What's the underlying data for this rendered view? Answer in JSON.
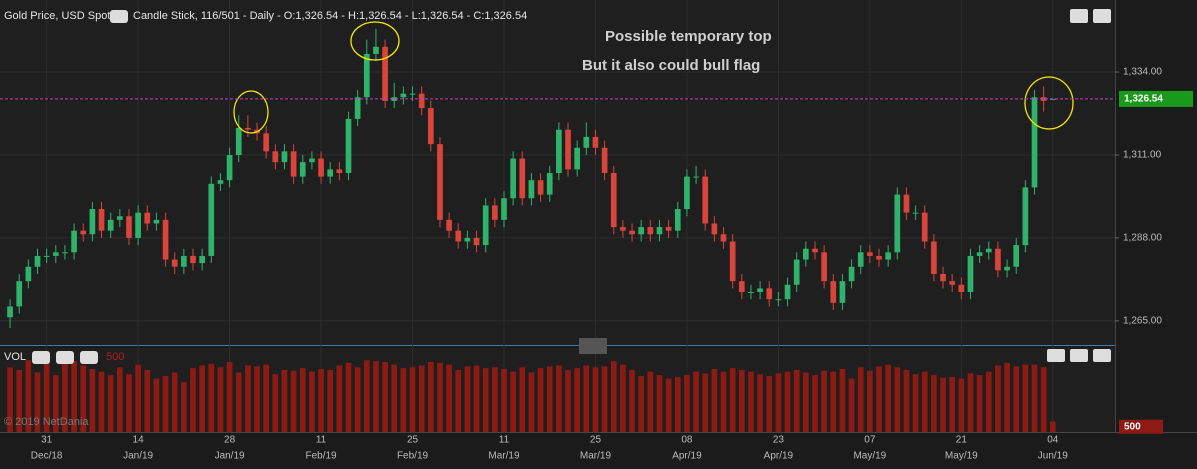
{
  "header": {
    "instrument": "Gold Price, USD Spot",
    "details": "Candle Stick, 116/501 - Daily - O:1,326.54 - H:1,326.54 - L:1,326.54 - C:1,326.54",
    "volume_label": "VOL",
    "copyright": "© 2019 NetDania"
  },
  "chart_data": {
    "type": "candlestick",
    "annotations": [
      {
        "text": "Possible temporary top",
        "color": "#c6e22e"
      },
      {
        "text": "But it also could bull flag",
        "color": "#f2e600"
      }
    ],
    "up_color": "#2fb36b",
    "down_color": "#d9453a",
    "xlim": [
      -1.1,
      120.8
    ],
    "xticks": [
      {
        "value": 4,
        "label": "31",
        "month": "Dec/18"
      },
      {
        "value": 14,
        "label": "14",
        "month": "Jan/19"
      },
      {
        "value": 24,
        "label": "28",
        "month": "Jan/19"
      },
      {
        "value": 34,
        "label": "11",
        "month": "Feb/19"
      },
      {
        "value": 44,
        "label": "25",
        "month": "Feb/19"
      },
      {
        "value": 54,
        "label": "11",
        "month": "Mar/19"
      },
      {
        "value": 64,
        "label": "25",
        "month": "Mar/19"
      },
      {
        "value": 74,
        "label": "08",
        "month": "Apr/19"
      },
      {
        "value": 84,
        "label": "23",
        "month": "Apr/19"
      },
      {
        "value": 94,
        "label": "07",
        "month": "May/19"
      },
      {
        "value": 104,
        "label": "21",
        "month": "May/19"
      },
      {
        "value": 114,
        "label": "04",
        "month": "Jun/19"
      }
    ],
    "ylim": [
      1258.3,
      1351.2
    ],
    "yticks": [
      {
        "value": 1265,
        "label": "1,265.00"
      },
      {
        "value": 1288,
        "label": "1,288.00"
      },
      {
        "value": 1311,
        "label": "1,311.00"
      },
      {
        "value": 1334,
        "label": "1,334.00"
      }
    ],
    "last_price": {
      "value": 1326.54,
      "label": "1,326.54"
    },
    "open": [
      1266,
      1269,
      1276,
      1280,
      1283,
      1283,
      1284,
      1284,
      1290,
      1289,
      1296,
      1290,
      1293,
      1294,
      1288,
      1295,
      1292,
      1293,
      1282,
      1280,
      1283,
      1281,
      1283,
      1303,
      1304,
      1311,
      1318.5,
      1318,
      1317,
      1312,
      1309,
      1312,
      1305,
      1309,
      1310,
      1305,
      1307,
      1306,
      1321,
      1327,
      1339,
      1341,
      1326,
      1327,
      1328,
      1328,
      1324,
      1314,
      1293,
      1290,
      1287,
      1288,
      1286,
      1297,
      1293,
      1299,
      1310,
      1299,
      1304,
      1300,
      1306,
      1318,
      1307,
      1313,
      1316,
      1313,
      1306,
      1291,
      1290,
      1289,
      1291,
      1289,
      1291,
      1290,
      1296,
      1305,
      1305,
      1292,
      1289,
      1287,
      1276,
      1273,
      1273,
      1274,
      1271,
      1271,
      1275,
      1282,
      1285,
      1284,
      1276,
      1270,
      1276,
      1280,
      1284,
      1283,
      1282,
      1284,
      1300,
      1295,
      1295,
      1287,
      1278,
      1276,
      1275,
      1273,
      1283,
      1284,
      1285,
      1279,
      1280,
      1286,
      1302,
      1327,
      1326.54
    ],
    "high": [
      1271,
      1278,
      1282,
      1285,
      1285,
      1286,
      1286,
      1292,
      1292,
      1298,
      1298,
      1295,
      1296,
      1296,
      1297,
      1297,
      1295,
      1295,
      1284,
      1285,
      1285,
      1285,
      1305,
      1306,
      1313,
      1322,
      1322,
      1320,
      1319,
      1314,
      1314,
      1314,
      1311,
      1312,
      1312,
      1309,
      1309,
      1323,
      1329,
      1343,
      1346,
      1343,
      1331,
      1330,
      1330,
      1330,
      1326,
      1316,
      1295,
      1292,
      1290,
      1290,
      1299,
      1299,
      1301,
      1312,
      1312,
      1306,
      1306,
      1308,
      1320,
      1320,
      1315,
      1320,
      1318,
      1315,
      1308,
      1293,
      1292,
      1293,
      1293,
      1293,
      1293,
      1298,
      1307,
      1308,
      1307,
      1294,
      1291,
      1289,
      1278,
      1275,
      1276,
      1276,
      1273,
      1277,
      1284,
      1287,
      1287,
      1286,
      1278,
      1278,
      1282,
      1286,
      1286,
      1285,
      1286,
      1302,
      1302,
      1297,
      1297,
      1289,
      1280,
      1278,
      1277,
      1285,
      1286,
      1287,
      1287,
      1282,
      1288,
      1304,
      1329,
      1330,
      1326.54
    ],
    "low": [
      1263,
      1267,
      1274,
      1278,
      1281,
      1281,
      1282,
      1282,
      1287,
      1287,
      1288,
      1288,
      1291,
      1286,
      1286,
      1290,
      1290,
      1280,
      1278,
      1278,
      1279,
      1279,
      1281,
      1301,
      1302,
      1309,
      1316,
      1315,
      1310,
      1307,
      1307,
      1303,
      1303,
      1307,
      1303,
      1303,
      1304,
      1304,
      1319,
      1325,
      1337,
      1324,
      1324,
      1325,
      1326,
      1322,
      1312,
      1291,
      1288,
      1285,
      1285,
      1284,
      1284,
      1291,
      1291,
      1297,
      1297,
      1297,
      1298,
      1298,
      1304,
      1305,
      1305,
      1311,
      1311,
      1304,
      1289,
      1288,
      1287,
      1287,
      1287,
      1287,
      1288,
      1288,
      1294,
      1303,
      1290,
      1287,
      1285,
      1274,
      1271,
      1271,
      1271,
      1269,
      1269,
      1269,
      1273,
      1280,
      1282,
      1274,
      1268,
      1268,
      1274,
      1278,
      1281,
      1280,
      1280,
      1282,
      1293,
      1293,
      1285,
      1276,
      1274,
      1273,
      1271,
      1271,
      1281,
      1282,
      1277,
      1277,
      1278,
      1284,
      1300,
      1323,
      1326.54
    ],
    "close": [
      1269,
      1276,
      1280,
      1283,
      1283,
      1284,
      1284,
      1290,
      1289,
      1296,
      1290,
      1293,
      1294,
      1288,
      1295,
      1292,
      1293,
      1282,
      1280,
      1283,
      1281,
      1283,
      1303,
      1304,
      1311,
      1318.5,
      1318,
      1317,
      1312,
      1309,
      1312,
      1305,
      1309,
      1310,
      1305,
      1307,
      1306,
      1321,
      1327,
      1339,
      1341,
      1326,
      1327,
      1328,
      1328,
      1324,
      1314,
      1293,
      1290,
      1287,
      1288,
      1286,
      1297,
      1293,
      1299,
      1310,
      1299,
      1304,
      1300,
      1306,
      1318,
      1307,
      1313,
      1316,
      1313,
      1306,
      1291,
      1290,
      1289,
      1291,
      1289,
      1291,
      1290,
      1296,
      1305,
      1305,
      1292,
      1289,
      1287,
      1276,
      1273,
      1273,
      1274,
      1271,
      1271,
      1275,
      1282,
      1285,
      1284,
      1276,
      1270,
      1276,
      1280,
      1284,
      1283,
      1282,
      1284,
      1300,
      1295,
      1295,
      1287,
      1278,
      1276,
      1275,
      1273,
      1283,
      1284,
      1285,
      1279,
      1280,
      1286,
      1302,
      1327,
      1326,
      1326.54
    ],
    "volume": {
      "color": "#8e1a14",
      "ylim": [
        440,
        1400
      ],
      "yticks": [
        500
      ],
      "values": [
        1180,
        1150,
        1260,
        1120,
        1240,
        1090,
        1270,
        1250,
        1200,
        1160,
        1130,
        1090,
        1180,
        1100,
        1210,
        1150,
        1050,
        1080,
        1120,
        1010,
        1170,
        1200,
        1220,
        1180,
        1240,
        1120,
        1200,
        1190,
        1210,
        1100,
        1150,
        1140,
        1170,
        1130,
        1160,
        1150,
        1200,
        1230,
        1180,
        1260,
        1250,
        1240,
        1210,
        1170,
        1180,
        1200,
        1240,
        1230,
        1210,
        1150,
        1190,
        1200,
        1170,
        1180,
        1160,
        1130,
        1180,
        1120,
        1170,
        1190,
        1200,
        1150,
        1170,
        1200,
        1180,
        1190,
        1250,
        1210,
        1150,
        1080,
        1130,
        1090,
        1050,
        1070,
        1090,
        1130,
        1110,
        1160,
        1130,
        1170,
        1150,
        1130,
        1100,
        1080,
        1110,
        1130,
        1150,
        1120,
        1090,
        1140,
        1130,
        1160,
        1050,
        1180,
        1140,
        1190,
        1210,
        1180,
        1150,
        1100,
        1130,
        1090,
        1060,
        1070,
        1050,
        1110,
        1090,
        1130,
        1200,
        1230,
        1190,
        1210,
        1210,
        1180,
        560
      ]
    }
  }
}
